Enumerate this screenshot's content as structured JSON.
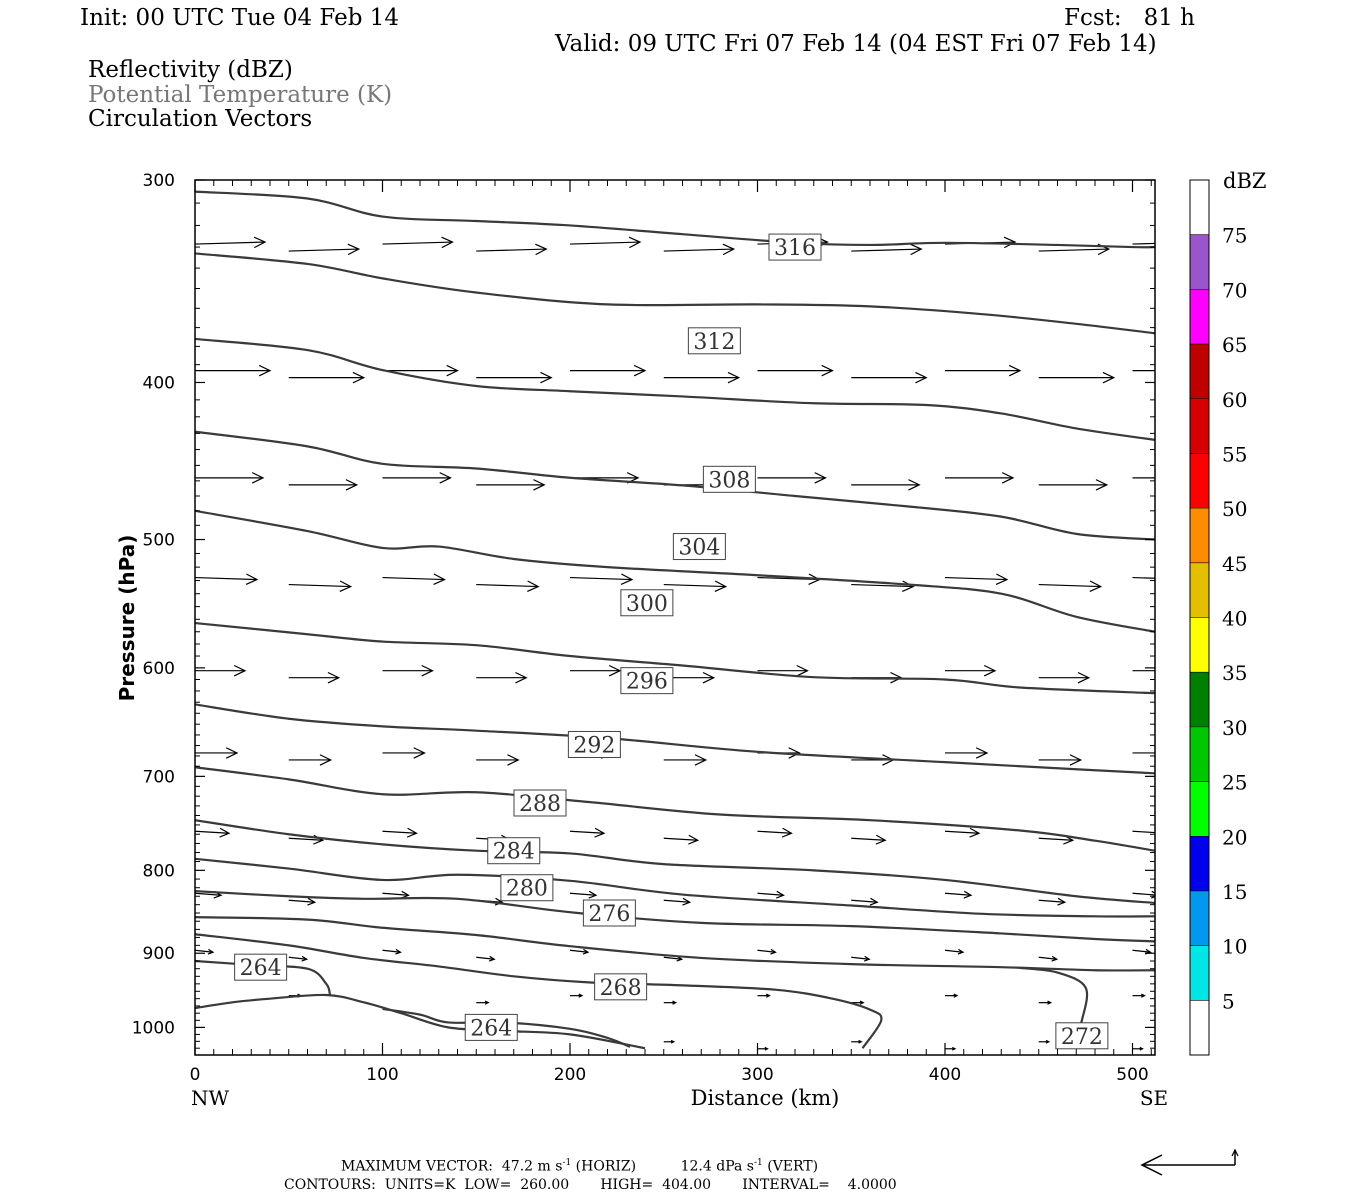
{
  "header": {
    "init": "Init: 00 UTC Tue 04 Feb 14",
    "fcst": "Fcst:   81 h",
    "valid": "Valid: 09 UTC Fri 07 Feb 14 (04 EST Fri 07 Feb 14)",
    "fields": [
      "Reflectivity (dBZ)",
      "Potential Temperature (K)",
      "Circulation Vectors"
    ]
  },
  "chart_data": {
    "type": "line",
    "subtype": "cross-section contour",
    "xlabel": "Distance (km)",
    "ylabel": "Pressure (hPa)",
    "xlim": [
      0,
      512
    ],
    "ylim": [
      1040,
      300
    ],
    "y_log": true,
    "x_ticks": [
      0,
      100,
      200,
      300,
      400,
      500
    ],
    "y_ticks": [
      300,
      400,
      500,
      600,
      700,
      800,
      900,
      1000
    ],
    "x_end_labels": {
      "left": "NW",
      "right": "SE"
    },
    "colorbar": {
      "unit": "dBZ",
      "levels": [
        5,
        10,
        15,
        20,
        25,
        30,
        35,
        40,
        45,
        50,
        55,
        60,
        65,
        70,
        75
      ],
      "colors": [
        "#00e5e5",
        "#0099ee",
        "#0000ee",
        "#00ff00",
        "#00c800",
        "#008000",
        "#ffff00",
        "#e5be00",
        "#ff8c00",
        "#ff0000",
        "#d70000",
        "#bf0000",
        "#ff00ff",
        "#9a55cd"
      ]
    },
    "contour_series": [
      {
        "label": "316",
        "label_at": [
          320,
          330
        ],
        "points": [
          [
            0,
            305
          ],
          [
            60,
            308
          ],
          [
            100,
            316
          ],
          [
            150,
            318
          ],
          [
            200,
            320
          ],
          [
            260,
            324
          ],
          [
            320,
            328
          ],
          [
            360,
            329
          ],
          [
            400,
            328
          ],
          [
            460,
            329
          ],
          [
            500,
            330
          ],
          [
            512,
            330
          ]
        ]
      },
      {
        "label": "",
        "label_at": null,
        "points": [
          [
            0,
            333
          ],
          [
            60,
            338
          ],
          [
            100,
            345
          ],
          [
            150,
            352
          ],
          [
            220,
            358
          ],
          [
            300,
            358
          ],
          [
            360,
            359
          ],
          [
            420,
            363
          ],
          [
            470,
            368
          ],
          [
            512,
            373
          ]
        ]
      },
      {
        "label": "312",
        "label_at": [
          277,
          377
        ],
        "points": [
          [
            0,
            376
          ],
          [
            60,
            382
          ],
          [
            100,
            393
          ],
          [
            150,
            402
          ],
          [
            200,
            405
          ],
          [
            260,
            408
          ],
          [
            330,
            412
          ],
          [
            390,
            413
          ],
          [
            430,
            418
          ],
          [
            470,
            427
          ],
          [
            512,
            434
          ]
        ]
      },
      {
        "label": "308",
        "label_at": [
          285,
          459
        ],
        "points": [
          [
            0,
            429
          ],
          [
            60,
            438
          ],
          [
            100,
            449
          ],
          [
            150,
            452
          ],
          [
            200,
            458
          ],
          [
            260,
            463
          ],
          [
            320,
            470
          ],
          [
            380,
            477
          ],
          [
            430,
            484
          ],
          [
            470,
            496
          ],
          [
            512,
            500
          ]
        ]
      },
      {
        "label": "304",
        "label_at": [
          269,
          505
        ],
        "points": [
          [
            0,
            480
          ],
          [
            60,
            494
          ],
          [
            100,
            506
          ],
          [
            130,
            505
          ],
          [
            170,
            514
          ],
          [
            220,
            520
          ],
          [
            300,
            526
          ],
          [
            380,
            533
          ],
          [
            430,
            540
          ],
          [
            470,
            558
          ],
          [
            512,
            570
          ]
        ]
      },
      {
        "label": "300",
        "label_at": [
          241,
          547
        ],
        "points": [
          [
            0,
            563
          ],
          [
            60,
            572
          ],
          [
            100,
            578
          ],
          [
            150,
            581
          ],
          [
            200,
            590
          ],
          [
            260,
            598
          ],
          [
            330,
            608
          ],
          [
            400,
            610
          ],
          [
            440,
            617
          ],
          [
            512,
            622
          ]
        ]
      },
      {
        "label": "296",
        "label_at": [
          241,
          611
        ],
        "points": [
          [
            0,
            632
          ],
          [
            50,
            645
          ],
          [
            100,
            652
          ],
          [
            150,
            656
          ],
          [
            220,
            663
          ],
          [
            300,
            676
          ],
          [
            400,
            686
          ],
          [
            460,
            692
          ],
          [
            512,
            697
          ]
        ]
      },
      {
        "label": "292",
        "label_at": [
          213,
          669
        ],
        "points": [
          [
            0,
            691
          ],
          [
            50,
            703
          ],
          [
            100,
            718
          ],
          [
            150,
            716
          ],
          [
            210,
            726
          ],
          [
            280,
            739
          ],
          [
            360,
            745
          ],
          [
            440,
            756
          ],
          [
            480,
            767
          ],
          [
            512,
            778
          ]
        ]
      },
      {
        "label": "288",
        "label_at": [
          184,
          727
        ],
        "points": [
          [
            0,
            745
          ],
          [
            50,
            760
          ],
          [
            100,
            771
          ],
          [
            150,
            778
          ],
          [
            200,
            781
          ],
          [
            250,
            793
          ],
          [
            330,
            800
          ],
          [
            400,
            811
          ],
          [
            470,
            830
          ],
          [
            512,
            838
          ]
        ]
      },
      {
        "label": "284",
        "label_at": [
          170,
          778
        ],
        "points": [
          [
            0,
            787
          ],
          [
            50,
            798
          ],
          [
            100,
            811
          ],
          [
            140,
            805
          ],
          [
            200,
            812
          ],
          [
            260,
            828
          ],
          [
            350,
            841
          ],
          [
            420,
            851
          ],
          [
            480,
            854
          ],
          [
            512,
            854
          ]
        ]
      },
      {
        "label": "280",
        "label_at": [
          177,
          820
        ],
        "points": [
          [
            0,
            824
          ],
          [
            50,
            830
          ],
          [
            90,
            833
          ],
          [
            140,
            833
          ],
          [
            200,
            849
          ],
          [
            270,
            862
          ],
          [
            350,
            866
          ],
          [
            430,
            875
          ],
          [
            480,
            882
          ],
          [
            512,
            885
          ]
        ]
      },
      {
        "label": "276",
        "label_at": [
          221,
          850
        ],
        "points": [
          [
            0,
            855
          ],
          [
            60,
            858
          ],
          [
            100,
            868
          ],
          [
            150,
            877
          ],
          [
            200,
            891
          ],
          [
            270,
            906
          ],
          [
            350,
            914
          ],
          [
            430,
            918
          ],
          [
            480,
            922
          ],
          [
            512,
            922
          ]
        ]
      },
      {
        "label": "264",
        "label_at": [
          35,
          918
        ],
        "points": [
          [
            0,
            910
          ],
          [
            30,
            915
          ],
          [
            60,
            920
          ],
          [
            70,
            940
          ],
          [
            72,
            955
          ]
        ]
      },
      {
        "label": "268",
        "label_at": [
          227,
          944
        ],
        "points": [
          [
            0,
            876
          ],
          [
            50,
            890
          ],
          [
            90,
            906
          ],
          [
            130,
            917
          ],
          [
            170,
            930
          ],
          [
            210,
            938
          ],
          [
            260,
            942
          ],
          [
            310,
            948
          ],
          [
            340,
            960
          ],
          [
            360,
            975
          ],
          [
            366,
            990
          ],
          [
            356,
            1030
          ]
        ]
      },
      {
        "label": "264",
        "label_at": [
          158,
          1000
        ],
        "points": [
          [
            100,
            974
          ],
          [
            120,
            982
          ],
          [
            135,
            993
          ],
          [
            165,
            993
          ],
          [
            200,
            1002
          ],
          [
            220,
            1015
          ],
          [
            232,
            1028
          ]
        ]
      },
      {
        "label": "",
        "label_at": null,
        "points": [
          [
            0,
            973
          ],
          [
            20,
            965
          ],
          [
            40,
            960
          ],
          [
            70,
            955
          ],
          [
            90,
            965
          ],
          [
            110,
            980
          ],
          [
            135,
            1000
          ],
          [
            165,
            1005
          ],
          [
            200,
            1010
          ],
          [
            240,
            1030
          ]
        ]
      },
      {
        "label": "272",
        "label_at": [
          473,
          1012
        ],
        "points": [
          [
            440,
            919
          ],
          [
            460,
            925
          ],
          [
            475,
            945
          ],
          [
            473,
            990
          ],
          [
            468,
            1025
          ]
        ]
      }
    ],
    "vectors_note": "circulation vectors, mostly west-to-east",
    "footer": {
      "max_vector_label": "MAXIMUM VECTOR:",
      "horiz": "47.2 m s",
      "horiz_unit": "(HORIZ)",
      "vert": "12.4 dPa s",
      "vert_unit": "(VERT)",
      "superscript": "-1",
      "contours": "CONTOURS:  UNITS=K  LOW=  260.00       HIGH=  404.00       INTERVAL=    4.0000"
    }
  }
}
